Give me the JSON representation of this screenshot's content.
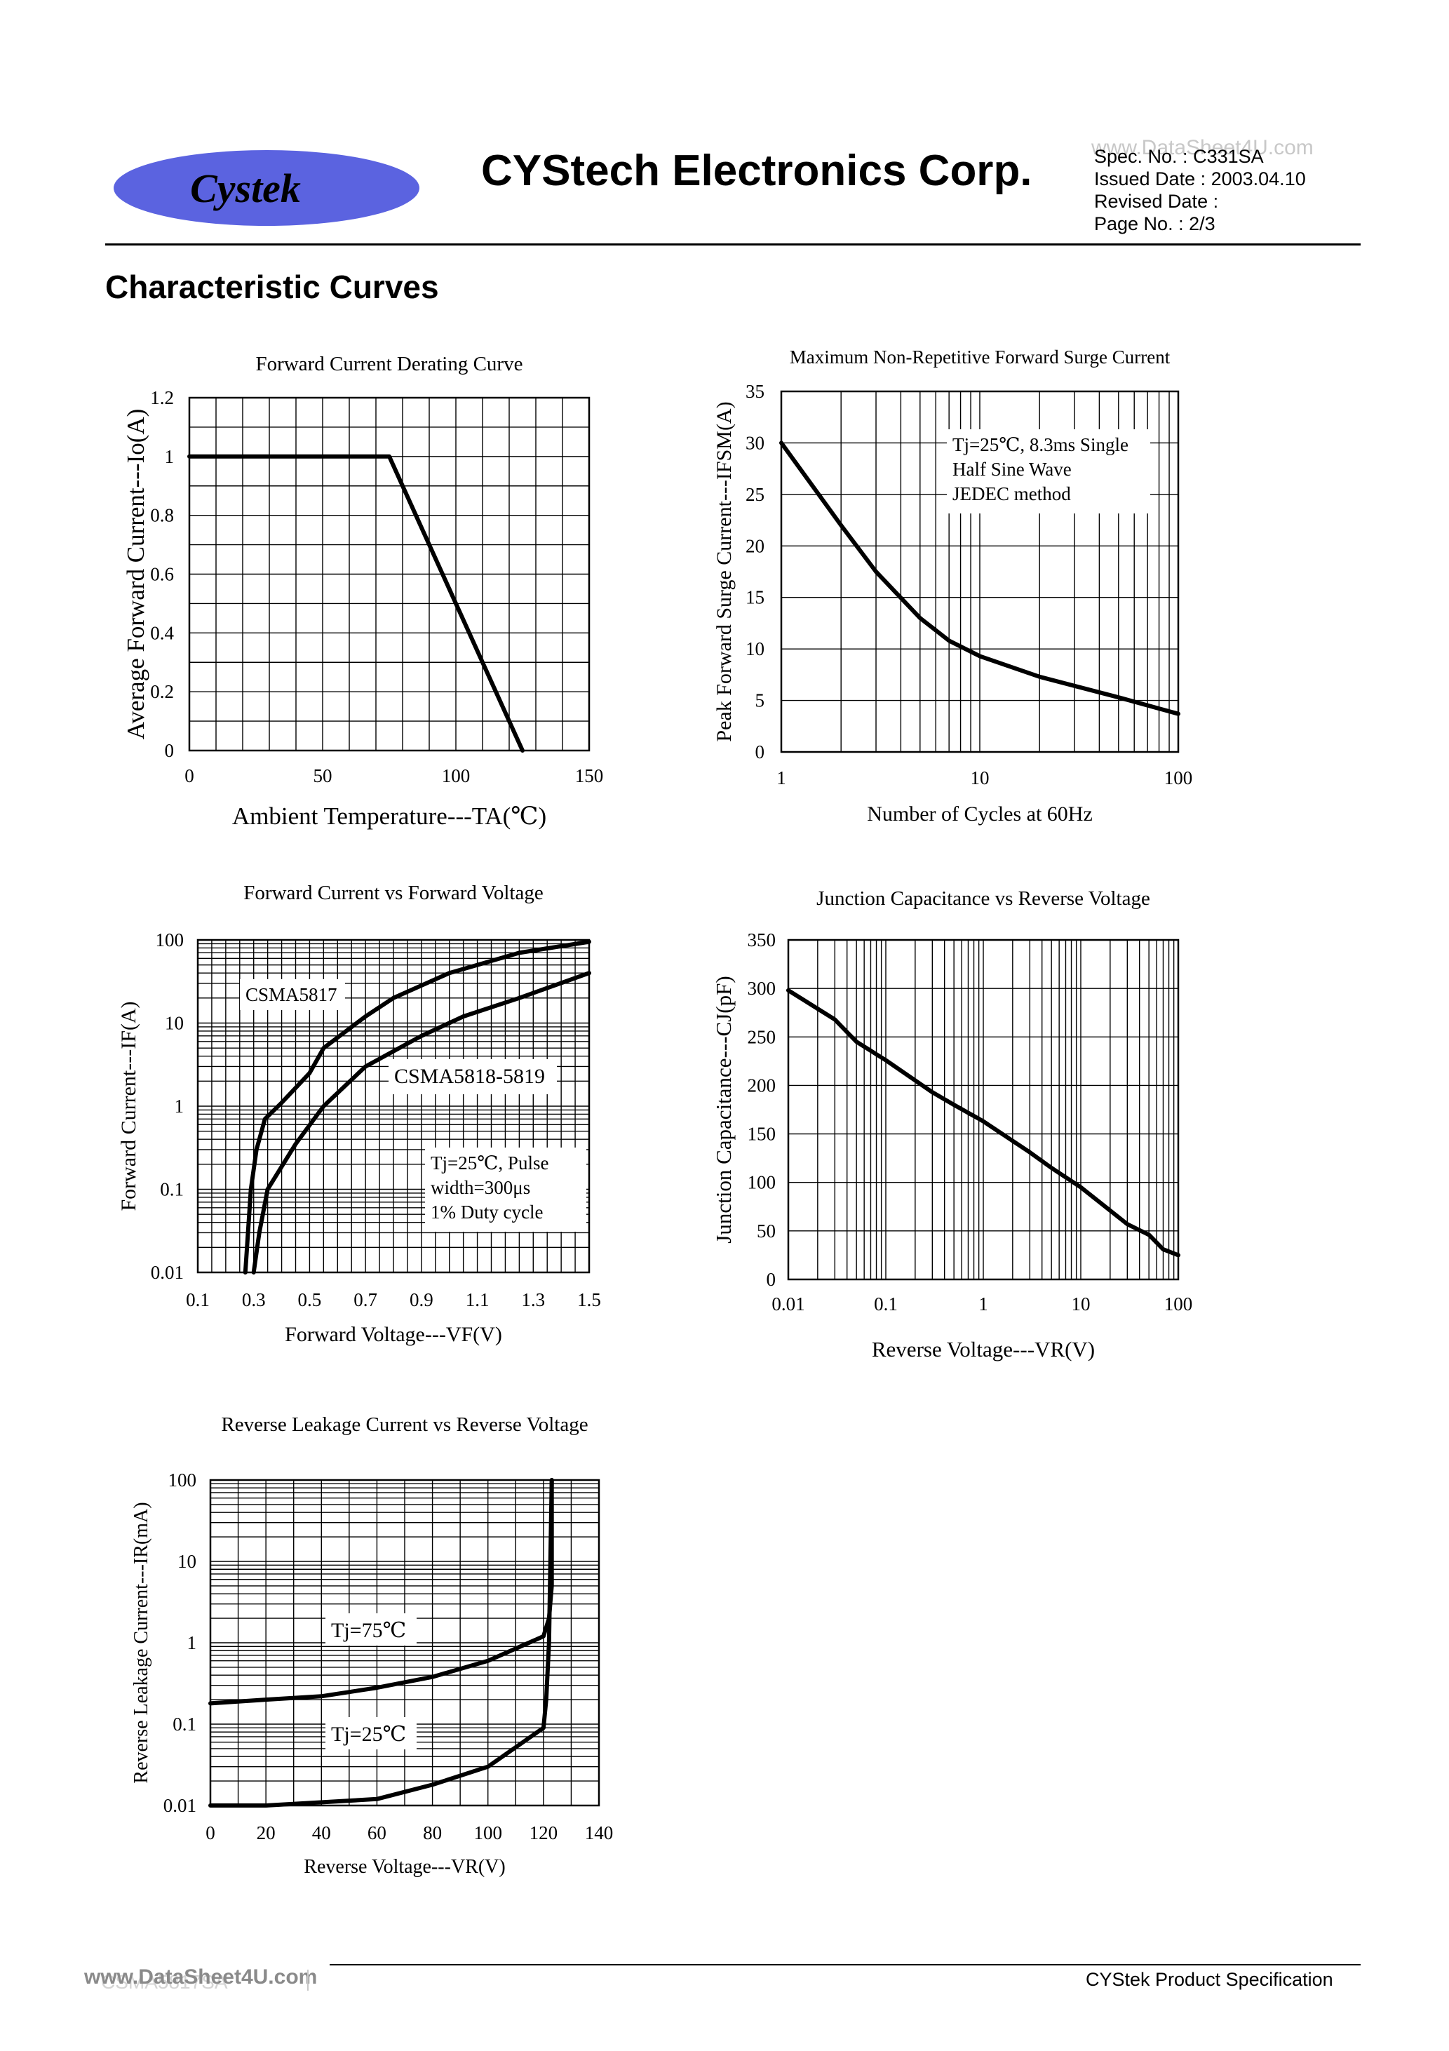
{
  "header": {
    "logo_text": "Cystek",
    "company": "CYStech Electronics Corp.",
    "spec_no": "Spec. No. : C331SA",
    "issued": "Issued Date : 2003.04.10",
    "revised": "Revised Date :",
    "page_no": "Page No. : 2/3",
    "watermark_top": "www.DataSheet4U.com"
  },
  "section_title": "Characteristic Curves",
  "footer": {
    "left_watermark": "www.DataSheet4U.com",
    "left_faded": "CSMA5817SA",
    "right": "CYStek Product Specification"
  },
  "chart_data": [
    {
      "id": "derating",
      "type": "line",
      "title": "Forward Current Derating Curve",
      "xlabel": "Ambient Temperature---TA(℃)",
      "ylabel": "Average Forward Current---Io(A)",
      "xlim": [
        0,
        150
      ],
      "ylim": [
        0,
        1.2
      ],
      "xticks": [
        "0",
        "50",
        "100",
        "150"
      ],
      "yticks": [
        "0",
        "0.2",
        "0.4",
        "0.6",
        "0.8",
        "1",
        "1.2"
      ],
      "series": [
        {
          "x": [
            0,
            75,
            125
          ],
          "y": [
            1,
            1,
            0
          ]
        }
      ]
    },
    {
      "id": "surge",
      "type": "line",
      "title": "Maximum Non-Repetitive Forward Surge Current",
      "xlabel": "Number of Cycles at 60Hz",
      "ylabel": "Peak Forward Surge Current---IFSM(A)",
      "xscale": "log",
      "xlim": [
        1,
        100
      ],
      "ylim": [
        0,
        35
      ],
      "xticks": [
        "1",
        "10",
        "100"
      ],
      "yticks": [
        "0",
        "5",
        "10",
        "15",
        "20",
        "25",
        "30",
        "35"
      ],
      "annotation": [
        "Tj=25℃, 8.3ms Single",
        "Half Sine Wave",
        "JEDEC method"
      ],
      "series": [
        {
          "x": [
            1,
            2,
            3,
            5,
            7,
            10,
            20,
            50,
            100
          ],
          "y": [
            30,
            22,
            17.5,
            13,
            10.8,
            9.3,
            7.3,
            5.3,
            3.7
          ]
        }
      ]
    },
    {
      "id": "ivf",
      "type": "line",
      "title": "Forward Current vs Forward Voltage",
      "xlabel": "Forward Voltage---VF(V)",
      "ylabel": "Forward Current---IF(A)",
      "yscale": "log",
      "xlim": [
        0.1,
        1.5
      ],
      "ylim": [
        0.01,
        100
      ],
      "xticks": [
        "0.1",
        "0.3",
        "0.5",
        "0.7",
        "0.9",
        "1.1",
        "1.3",
        "1.5"
      ],
      "yticks": [
        "0.01",
        "0.1",
        "1",
        "10",
        "100"
      ],
      "annotation": [
        "Tj=25℃, Pulse",
        "width=300μs",
        "1% Duty cycle"
      ],
      "series": [
        {
          "name": "CSMA5817",
          "x": [
            0.27,
            0.29,
            0.31,
            0.34,
            0.4,
            0.5,
            0.55,
            0.7,
            0.8,
            1.0,
            1.25,
            1.5
          ],
          "y": [
            0.01,
            0.1,
            0.3,
            0.7,
            1.1,
            2.5,
            5,
            12,
            20,
            40,
            70,
            95
          ]
        },
        {
          "name": "CSMA5818-5819",
          "x": [
            0.3,
            0.32,
            0.35,
            0.45,
            0.55,
            0.7,
            0.9,
            1.05,
            1.25,
            1.5
          ],
          "y": [
            0.01,
            0.03,
            0.1,
            0.35,
            1,
            3,
            7,
            12,
            20,
            40
          ]
        }
      ]
    },
    {
      "id": "cap",
      "type": "line",
      "title": "Junction Capacitance vs Reverse Voltage",
      "xlabel": "Reverse Voltage---VR(V)",
      "ylabel": "Junction Capacitance---CJ(pF)",
      "xscale": "log",
      "xlim": [
        0.01,
        100
      ],
      "ylim": [
        0,
        350
      ],
      "xticks": [
        "0.01",
        "0.1",
        "1",
        "10",
        "100"
      ],
      "yticks": [
        "0",
        "50",
        "100",
        "150",
        "200",
        "250",
        "300",
        "350"
      ],
      "series": [
        {
          "x": [
            0.01,
            0.03,
            0.04,
            0.05,
            0.1,
            0.3,
            0.5,
            1,
            3,
            5,
            10,
            30,
            50,
            70,
            100
          ],
          "y": [
            298,
            268,
            255,
            245,
            226,
            193,
            180,
            163,
            131,
            115,
            95,
            57,
            46,
            31,
            25
          ]
        }
      ]
    },
    {
      "id": "leak",
      "type": "line",
      "title": "Reverse  Leakage Current vs Reverse Voltage",
      "xlabel": "Reverse Voltage---VR(V)",
      "ylabel": "Reverse Leakage Current---IR(mA)",
      "yscale": "log",
      "xlim": [
        0,
        140
      ],
      "ylim": [
        0.01,
        100
      ],
      "xticks": [
        "0",
        "20",
        "40",
        "60",
        "80",
        "100",
        "120",
        "140"
      ],
      "yticks": [
        "0.01",
        "0.1",
        "1",
        "10",
        "100"
      ],
      "series": [
        {
          "name": "Tj=75℃",
          "x": [
            0,
            20,
            40,
            60,
            80,
            100,
            120,
            122,
            123,
            123
          ],
          "y": [
            0.18,
            0.2,
            0.22,
            0.28,
            0.38,
            0.6,
            1.2,
            2,
            5,
            100
          ]
        },
        {
          "name": "Tj=25℃",
          "x": [
            0,
            20,
            60,
            80,
            100,
            120,
            121,
            122,
            123
          ],
          "y": [
            0.01,
            0.01,
            0.012,
            0.018,
            0.03,
            0.09,
            0.2,
            1,
            100
          ]
        }
      ]
    }
  ]
}
